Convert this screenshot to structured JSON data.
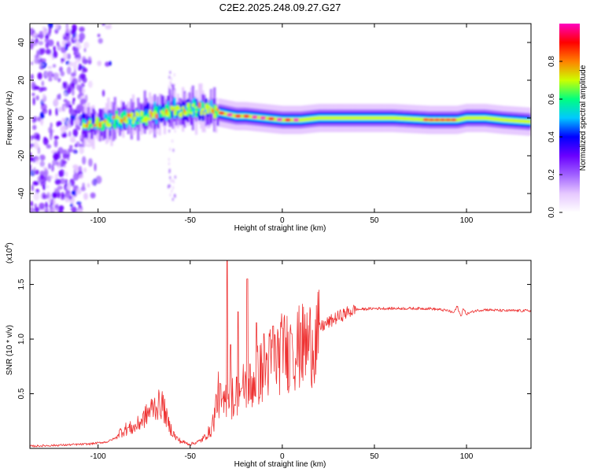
{
  "title": "C2E2.2025.248.09.27.G27",
  "colors": {
    "snr_line": "#ee3333",
    "colormap": [
      "#ffffff",
      "#e6c8ff",
      "#a060ff",
      "#6a00ff",
      "#0000ff",
      "#00c8ff",
      "#00ff80",
      "#ccff00",
      "#ff8000",
      "#ff0000",
      "#ff00c0"
    ]
  },
  "chart_data": [
    {
      "type": "heatmap",
      "xlabel": "Height of straight line (km)",
      "ylabel": "Frequency (Hz)",
      "xlim": [
        -137,
        135
      ],
      "ylim": [
        -50,
        50
      ],
      "xticks": [
        -100,
        -50,
        0,
        50,
        100
      ],
      "yticks": [
        -40,
        -20,
        0,
        20,
        40
      ],
      "ridge": {
        "x": [
          -108,
          -100,
          -90,
          -80,
          -70,
          -60,
          -55,
          -50,
          -45,
          -40,
          -35,
          -30,
          -25,
          -20,
          -10,
          0,
          10,
          20,
          40,
          60,
          80,
          95,
          100,
          110,
          120,
          135
        ],
        "freq": [
          -3,
          -3,
          -1,
          0,
          2,
          4,
          4,
          5,
          5,
          4,
          3,
          2,
          1,
          1,
          0,
          -1,
          -1,
          0,
          0,
          0,
          -1,
          -1,
          0,
          0,
          -1,
          -2
        ]
      },
      "colorbar": {
        "label": "Normalized spectral amplitude",
        "ticks": [
          "0.0",
          "0.2",
          "0.4",
          "0.6",
          "0.8"
        ],
        "range": [
          0,
          1
        ]
      },
      "grid": false
    },
    {
      "type": "line",
      "xlabel": "Height of straight line (km)",
      "ylabel": "SNR (10 * v/v)",
      "multiplier": "(x10",
      "multiplier_exp": "4",
      "xlim": [
        -137,
        135
      ],
      "ylim": [
        0,
        1.72
      ],
      "xticks": [
        -100,
        -50,
        0,
        50,
        100
      ],
      "yticks": [
        0.5,
        1.0,
        1.5
      ],
      "ytick_labels": [
        "0.5",
        "1.0",
        "1.5"
      ],
      "envelope": {
        "x": [
          -137,
          -120,
          -105,
          -95,
          -90,
          -85,
          -80,
          -75,
          -70,
          -65,
          -62,
          -58,
          -55,
          -50,
          -45,
          -42,
          -40,
          -37,
          -35,
          -32,
          -30,
          -27,
          -25,
          -22,
          -20,
          -17,
          -15,
          -12,
          -10,
          -5,
          0,
          5,
          10,
          15,
          20,
          25,
          30,
          35,
          40,
          50,
          60,
          70,
          80,
          90,
          93,
          95,
          97,
          98,
          100,
          105,
          110,
          120,
          135
        ],
        "y": [
          0.02,
          0.03,
          0.04,
          0.06,
          0.1,
          0.14,
          0.15,
          0.22,
          0.3,
          0.32,
          0.18,
          0.08,
          0.05,
          0.03,
          0.05,
          0.08,
          0.12,
          0.3,
          0.55,
          0.4,
          0.55,
          0.5,
          0.55,
          0.6,
          0.65,
          0.62,
          0.7,
          0.75,
          0.8,
          0.88,
          0.95,
          0.98,
          1.0,
          1.05,
          1.1,
          1.15,
          1.2,
          1.24,
          1.27,
          1.28,
          1.28,
          1.28,
          1.28,
          1.26,
          1.24,
          1.3,
          1.2,
          1.28,
          1.23,
          1.26,
          1.27,
          1.26,
          1.26
        ]
      },
      "spikes": [
        {
          "x": -30,
          "y": 1.72
        },
        {
          "x": -28,
          "y": 0.95
        },
        {
          "x": -26,
          "y": 0.4
        },
        {
          "x": -24,
          "y": 1.25
        },
        {
          "x": -22,
          "y": 0.55
        },
        {
          "x": -19,
          "y": 1.55
        },
        {
          "x": -17,
          "y": 0.45
        },
        {
          "x": -14,
          "y": 1.15
        },
        {
          "x": -10,
          "y": 1.05
        },
        {
          "x": -5,
          "y": 1.12
        },
        {
          "x": 0,
          "y": 1.1
        },
        {
          "x": 5,
          "y": 1.05
        },
        {
          "x": 10,
          "y": 1.15
        }
      ],
      "grid": false
    }
  ]
}
